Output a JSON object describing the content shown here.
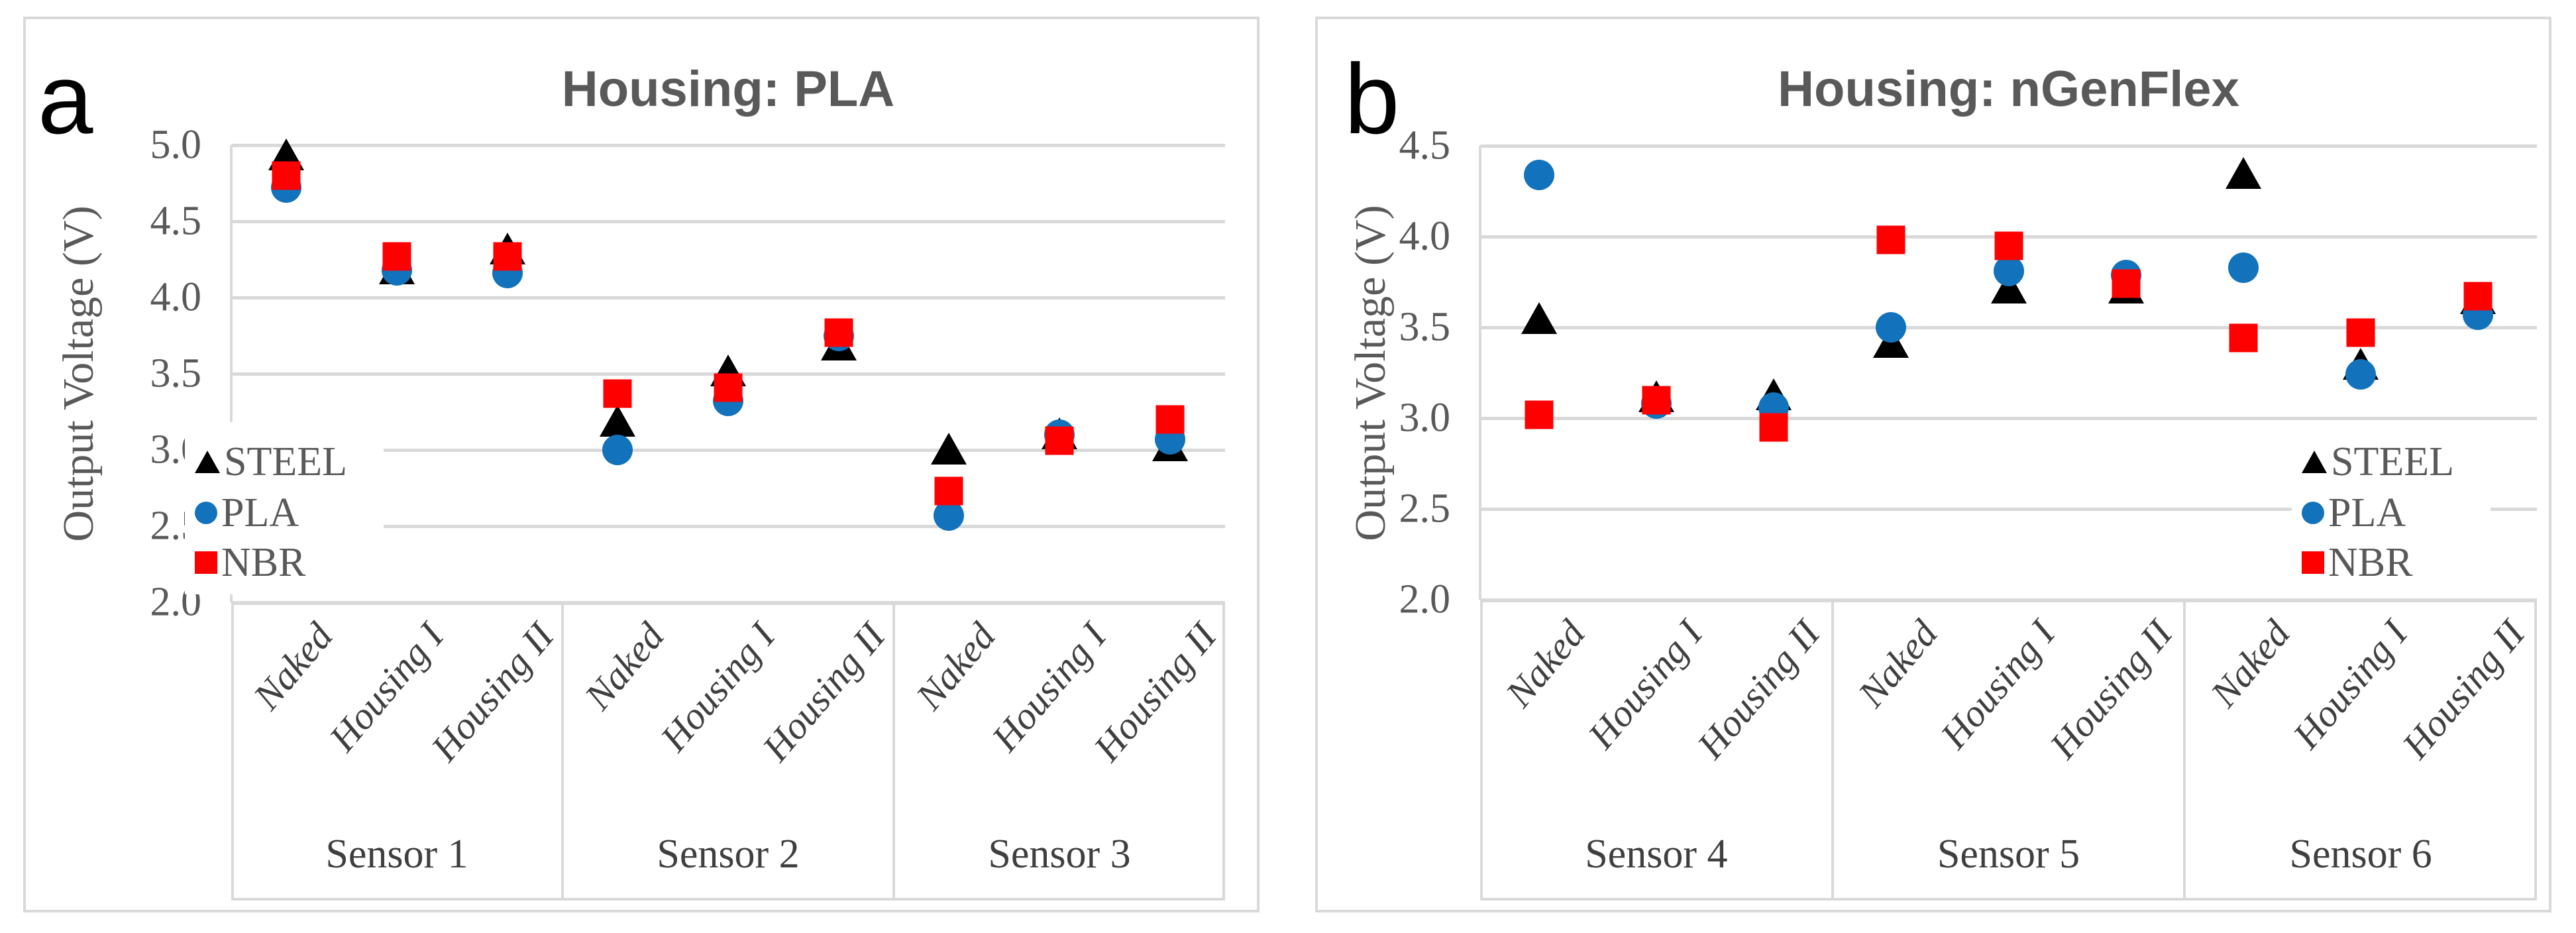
{
  "figure": {
    "background": "#ffffff",
    "border_color": "#d9d9d9",
    "gridline_color": "#d9d9d9",
    "text_color": "#595959",
    "category_text_color": "#3f3f3f"
  },
  "legend": {
    "items": [
      {
        "label": "STEEL",
        "marker": "triangle",
        "color": "#000000"
      },
      {
        "label": "PLA",
        "marker": "circle",
        "color": "#1272bb"
      },
      {
        "label": "NBR",
        "marker": "square",
        "color": "#ff0000"
      }
    ]
  },
  "chart_data": [
    {
      "type": "scatter",
      "panel_label": "a",
      "title": "Housing: PLA",
      "ylabel": "Output Voltage (V)",
      "ylim": [
        2.0,
        5.0
      ],
      "yticks": [
        "5.0",
        "4.5",
        "4.0",
        "3.5",
        "3.0",
        "2.5",
        "2.0"
      ],
      "ytick_values": [
        5.0,
        4.5,
        4.0,
        3.5,
        3.0,
        2.5,
        2.0
      ],
      "grid": true,
      "legend_position": "inside-bottom-left",
      "groups": [
        "Sensor 1",
        "Sensor 2",
        "Sensor 3"
      ],
      "conditions": [
        "Naked",
        "Housing I",
        "Housing II"
      ],
      "series": [
        {
          "name": "STEEL",
          "marker": "triangle",
          "color": "#000000",
          "values": [
            [
              4.94,
              4.19,
              4.32
            ],
            [
              3.19,
              3.52,
              3.69
            ],
            [
              3.01,
              3.11,
              3.03
            ]
          ]
        },
        {
          "name": "PLA",
          "marker": "circle",
          "color": "#1272bb",
          "values": [
            [
              4.72,
              4.18,
              4.16
            ],
            [
              3.0,
              3.32,
              3.75
            ],
            [
              2.57,
              3.1,
              3.07
            ]
          ]
        },
        {
          "name": "NBR",
          "marker": "square",
          "color": "#ff0000",
          "values": [
            [
              4.8,
              4.27,
              4.27
            ],
            [
              3.37,
              3.41,
              3.77
            ],
            [
              2.73,
              3.06,
              3.2
            ]
          ]
        }
      ]
    },
    {
      "type": "scatter",
      "panel_label": "b",
      "title": "Housing: nGenFlex",
      "ylabel": "Output Voltage (V)",
      "ylim": [
        2.0,
        4.5
      ],
      "yticks": [
        "4.5",
        "4.0",
        "3.5",
        "3.0",
        "2.5",
        "2.0"
      ],
      "ytick_values": [
        4.5,
        4.0,
        3.5,
        3.0,
        2.5,
        2.0
      ],
      "grid": true,
      "legend_position": "inside-bottom-right",
      "groups": [
        "Sensor 4",
        "Sensor 5",
        "Sensor 6"
      ],
      "conditions": [
        "Naked",
        "Housing I",
        "Housing II"
      ],
      "series": [
        {
          "name": "STEEL",
          "marker": "triangle",
          "color": "#000000",
          "values": [
            [
              3.55,
              3.12,
              3.13
            ],
            [
              3.42,
              3.72,
              3.72
            ],
            [
              4.35,
              3.3,
              3.66
            ]
          ]
        },
        {
          "name": "PLA",
          "marker": "circle",
          "color": "#1272bb",
          "values": [
            [
              4.34,
              3.08,
              3.06
            ],
            [
              3.5,
              3.81,
              3.79
            ],
            [
              3.83,
              3.24,
              3.57
            ]
          ]
        },
        {
          "name": "NBR",
          "marker": "square",
          "color": "#ff0000",
          "values": [
            [
              3.02,
              3.1,
              2.95
            ],
            [
              3.98,
              3.95,
              3.74
            ],
            [
              3.44,
              3.47,
              3.67
            ]
          ]
        }
      ]
    }
  ]
}
